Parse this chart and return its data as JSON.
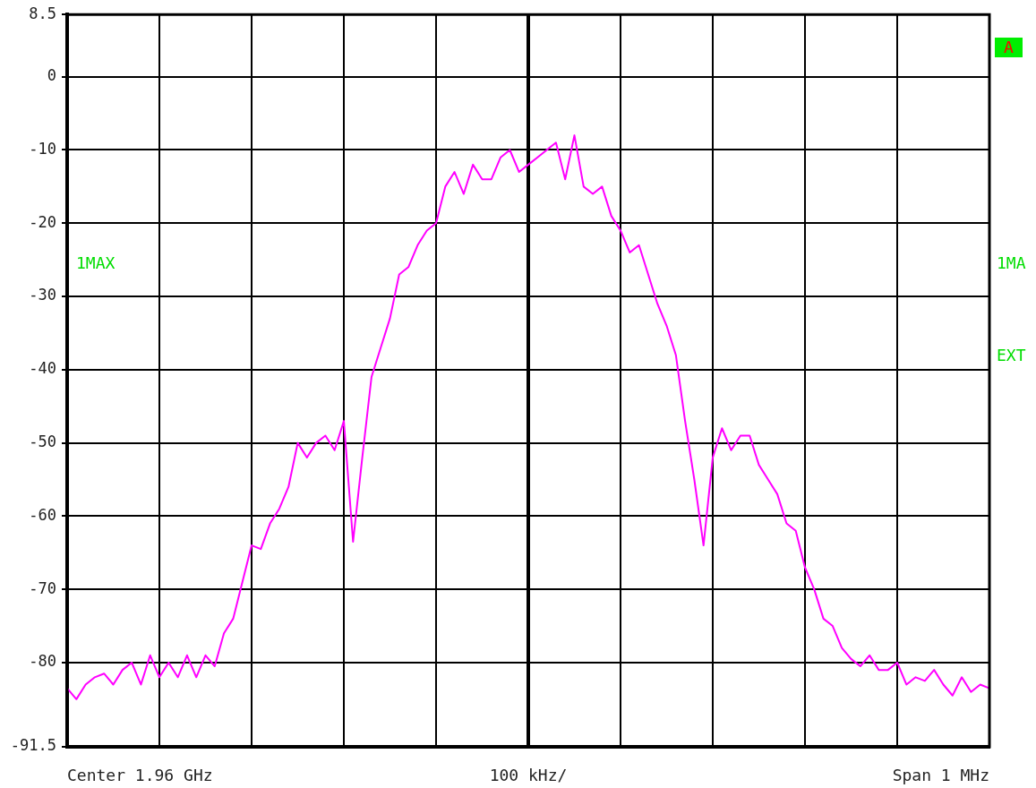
{
  "chart_data": {
    "type": "line",
    "categories": [
      null,
      null,
      null,
      null,
      null,
      null,
      null,
      null,
      null,
      null,
      null,
      null,
      null,
      null,
      null,
      null,
      null,
      null,
      null,
      null,
      null,
      null,
      null,
      null,
      null,
      null,
      null,
      null,
      null,
      null,
      null,
      null,
      null,
      null,
      null,
      null,
      null,
      null,
      null,
      null,
      null,
      null,
      null,
      null,
      null,
      null,
      null,
      null,
      null,
      null,
      null,
      null,
      null,
      null,
      null,
      null,
      null,
      null,
      null,
      null,
      null,
      null,
      null,
      null,
      null,
      null,
      null,
      null,
      null,
      null,
      null,
      null,
      null,
      null,
      null,
      null,
      null,
      null,
      null,
      null,
      null,
      null,
      null,
      null,
      null,
      null,
      null,
      null,
      null,
      null,
      null,
      null,
      null,
      null,
      null,
      null,
      null,
      null,
      null,
      null,
      null
    ],
    "series": [
      {
        "color": "#ff00ff",
        "values": [
          -83.5,
          -85,
          -83,
          -82,
          -81.5,
          -83,
          -81,
          -80,
          -83,
          -79,
          -82,
          -80,
          -82,
          -79,
          -82,
          -79,
          -80.5,
          -76,
          -74,
          -69,
          -64,
          -64.5,
          -61,
          -59,
          -56,
          -50,
          -52,
          -50,
          -49,
          -51,
          -47,
          -63.5,
          -52,
          -41,
          -37,
          -33,
          -27,
          -26,
          -23,
          -21,
          -20,
          -15,
          -13,
          -16,
          -12,
          -14,
          -14,
          -11,
          -10,
          -13,
          -12,
          -11,
          -10,
          -9,
          -14,
          -8,
          -15,
          -16,
          -15,
          -19,
          -21,
          -24,
          -23,
          -27,
          -31,
          -34,
          -38,
          -47,
          -55,
          -64,
          -52,
          -48,
          -51,
          -49,
          -49,
          -53,
          -55,
          -57,
          -61,
          -62,
          -67,
          -70,
          -74,
          -75,
          -78,
          -79.5,
          -80.5,
          -79,
          -81,
          -81,
          -80,
          -83,
          -82,
          -82.5,
          -81,
          -83,
          -84.5,
          -82,
          -84,
          -83,
          -83.5
        ]
      }
    ],
    "ylim": [
      -91.5,
      8.5
    ],
    "yticks": [
      8.5,
      0,
      -10,
      -20,
      -30,
      -40,
      -50,
      -60,
      -70,
      -80,
      -91.5
    ],
    "tick_labels": "y",
    "grid": true,
    "legend": false,
    "marker": "none",
    "line_style": "solid",
    "annotations": [
      "Center 1.96 GHz",
      "100 kHz/",
      "Span 1 MHz",
      "1MAX",
      "1MA",
      "EXT",
      "A"
    ]
  }
}
